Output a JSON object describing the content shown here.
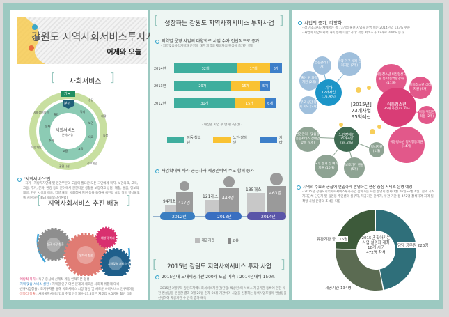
{
  "title": {
    "main": "강원도 지역사회서비스투자사업",
    "sub": "어제와 오늘"
  },
  "social": {
    "heading": "사회서비스",
    "tag_function": "기능",
    "tag_field": "분야",
    "center": "사회서비스",
    "center_sub": "분야/기능",
    "outer": [
      "상담",
      "재활",
      "돌봄",
      "정보제공",
      "관련시설",
      "역량개발",
      "사회참여지원"
    ],
    "inner": [
      "복지",
      "보건",
      "의료",
      "교육",
      "고용",
      "주거",
      "문화",
      "환경"
    ],
    "def_title": "\"사회서비스\"란",
    "def_text": "- 국가 · 지방자치단체 및 민간부문의 도움이 필요한 모든 국민에게 복지, 보건의료, 교육, 고용, 주거, 문화, 환경 등의 분야에서 인간다운 생활을 보장하고 상담, 재활, 돌봄, 정보의 제공, 관련 시설의 이용, 역량 개발, 사회참여 지원 등을 통하여 국민의 삶의 질이 향상되도록 지원하는 제도(사회보장기본법)"
  },
  "background": {
    "heading": "지역사회서비스 추진 배경",
    "gears": [
      "신규 시장 창출",
      "일자리 창출",
      "예방적 복지",
      "지역맞춤 서비스 실현"
    ],
    "notes": [
      {
        "label": "-예방적 복지 :",
        "text": "욕구 중심의 선제적 개입 인적자본 형성",
        "color": "#d9306f"
      },
      {
        "label": "-지역 맞춤 서비스 실현 :",
        "text": "지역별 인구 다른 문제와 새로운 사회적 위험에 대비",
        "color": "#2a7fbf"
      },
      {
        "label": "-신규시장창출 :",
        "text": "초기투자를 통해 사회서비스 시장 형성 및 새로운 사회서비스 인큐베이팅",
        "color": "#666"
      },
      {
        "label": "-일자리 창출 :",
        "text": "사회복지서비스업의 취업 유발계수 03.8명은 제조업 9.5명을 훨씬 상회",
        "color": "#e0645c"
      }
    ]
  },
  "growth": {
    "heading": "성장하는 강원도 지역사회서비스 투자사업",
    "sub1": "지역별 운영 사업의 다양화로 사업 수가 전반적으로 증가",
    "sub1_note": "- 지역맞춤사업기획과 운영에 대한 지역의 제공자의 관심이 증가한 결과",
    "chart_caption": "- 대상별 사업 수 변화(3년간) -",
    "sub2": "사업확대에 따라 공급자와 제공인력의 수도 함께 증가",
    "legend_org": "제공기관",
    "legend_emp": "고용",
    "people": [
      {
        "year": "2012년",
        "orgs": "94개소",
        "emp": "417명"
      },
      {
        "year": "2013년",
        "orgs": "121개소",
        "emp": "443명"
      },
      {
        "year": "2014년",
        "orgs": "135개소",
        "emp": "463명"
      }
    ]
  },
  "chart_data": {
    "type": "bar",
    "orientation": "horizontal-stacked",
    "categories": [
      "2014년",
      "2013년",
      "2012년"
    ],
    "series": [
      {
        "name": "아동·청소년",
        "values": [
          32,
          29,
          31
        ],
        "labels": [
          "32개",
          "29개",
          "31개"
        ],
        "color": "#3fae9e"
      },
      {
        "name": "노인·장애인",
        "values": [
          17,
          15,
          15
        ],
        "labels": [
          "17개",
          "15개",
          "15개"
        ],
        "color": "#f9c232"
      },
      {
        "name": "기타",
        "values": [
          6,
          5,
          6
        ],
        "labels": [
          "6개",
          "5개",
          "6개"
        ],
        "color": "#3d7fc9"
      }
    ],
    "title": "대상별 사업 수 변화(3년간)",
    "legend": "bottom"
  },
  "y2015": {
    "heading": "2015년 강원도 지역사회서비스 투자 사업",
    "sub": "2015년내 도내제공기관 200개 도달 예측 : 2014년대비 150%",
    "text": "- 2015년 2월부터 강원도지역사회서비스지원단(단장: 박상헌)이 서비스 제공기관 등록에 관한 사전 컨설팅을 운영한 결과 3월 20일 현재 60개 기관이며 사업을 신청하는 등록사업포함이 컨설팅을 신청하여 제공기관 수 큰폭 증가 예측"
  },
  "diversity": {
    "heading": "사업의 증가, 다양화",
    "lines": [
      "- 각 기초자치단체에서는 총 73개의 출현 사업을 운영 이는 2014년의 133% 수준",
      "- 사업이 다양화되어 가족 등에 대한 '기타' 유형 서비스가 12개로 200% 증가"
    ],
    "center": [
      "[2015년]",
      "73개사업",
      "95억예산"
    ],
    "hubs": [
      {
        "name": "기타",
        "count": "12개사업",
        "pct": "(16.4%)"
      },
      {
        "name": "아동청소년",
        "count": "36개 사업(49.3%)"
      },
      {
        "name": "노인장애인",
        "count": "25개사업",
        "pct": "(34.2%)"
      }
    ],
    "leaves": [
      "건강관리 (1개)",
      "취약 가구 사례 관리지원 (7개)",
      "출산 위 과정 지원 (2개)",
      "부모 상담 양육 지도 (2개)",
      "아동청소년 비전형성지원 등 아동역량강화 (11개)",
      "아동청소년 심리지원 (9개)",
      "아동 위험관리등 (2개)",
      "아동청소년 정서행동지원 (14개)",
      "건강관리 · 맞춤형 운동서비스 장애인 맞춤 (9개)",
      "노후 설계 및 여가지원 (10개)",
      "보조기기 렌탈 (5개)",
      "정서지원 (1개)"
    ]
  },
  "briefing": {
    "heading": "지역의 수요와 공급에 편입하게 반영하는 현장 중심 서비스 운영 예정",
    "text": "- 2015년 강원도지역사회서비스투자사업 찾아가는 사업 설명회 실시(1월 26일~2월 6일) 결과 기초자치단체 담당자 및 읍면동 주민센터 실무자, 제공기관 관계자, 유관 기관 등 472명 참석하여 지역 밀착형 사업 운영의 초석을 다짐",
    "center": [
      "2015년 찾아가는",
      "사업 설명회 개최",
      "18개 시군",
      "472명 참석"
    ],
    "segments": [
      {
        "label": "담당 공무원 223명",
        "value": 223,
        "color": "#2f6f7a"
      },
      {
        "label": "제공기관 134명",
        "value": 134,
        "color": "#5b6b52"
      },
      {
        "label": "유관기관 등 115명",
        "value": 115,
        "color": "#3d5a3a"
      }
    ]
  }
}
